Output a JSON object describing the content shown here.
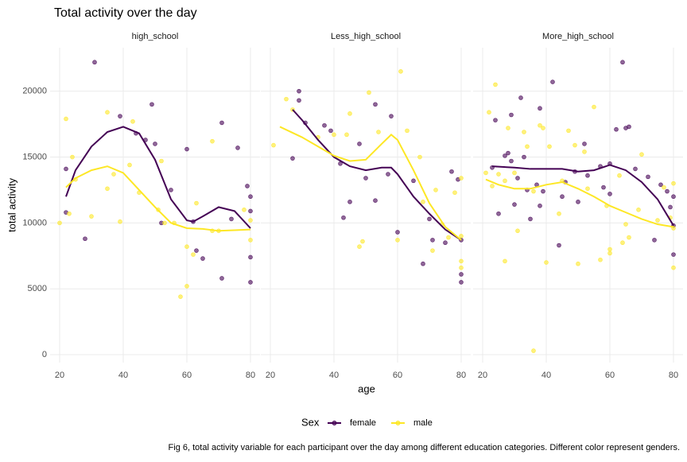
{
  "chart_data": {
    "type": "scatter",
    "title": "Total activity over the day",
    "xlabel": "age",
    "ylabel": "total activity",
    "legend_title": "Sex",
    "caption": "Fig 6, total activity variable for each participant over the day among different education categories. Different color represent genders.",
    "xlim": [
      17,
      83
    ],
    "ylim": [
      -600,
      23300
    ],
    "xticks": [
      20,
      40,
      60,
      80
    ],
    "yticks": [
      0,
      5000,
      10000,
      15000,
      20000
    ],
    "grid": true,
    "groups": [
      {
        "name": "female",
        "color": "#440154"
      },
      {
        "name": "male",
        "color": "#FDE725"
      }
    ],
    "facets": [
      {
        "title": "high_school",
        "series": [
          {
            "x": [
              22,
              22,
              28,
              31,
              39,
              44,
              47,
              49,
              50,
              52,
              55,
              60,
              62,
              63,
              65,
              71,
              71,
              74,
              76,
              79,
              80,
              80,
              80,
              80
            ],
            "values": [
              14100,
              10800,
              8800,
              22200,
              18100,
              16800,
              16300,
              19000,
              16000,
              10000,
              12500,
              15600,
              10100,
              7900,
              7300,
              17600,
              5800,
              10300,
              15700,
              12800,
              12000,
              10900,
              7400,
              5500
            ],
            "smooth_x": [
              22,
              25,
              30,
              35,
              40,
              45,
              50,
              55,
              60,
              62,
              65,
              70,
              75,
              80
            ],
            "smooth_values": [
              12000,
              14000,
              15800,
              16900,
              17300,
              16800,
              14800,
              11800,
              10200,
              10100,
              10500,
              11200,
              10900,
              9600
            ]
          },
          {
            "x": [
              20,
              22,
              23,
              24,
              25,
              30,
              35,
              35,
              37,
              39,
              42,
              43,
              45,
              51,
              52,
              53,
              56,
              58,
              60,
              60,
              62,
              63,
              68,
              68,
              70,
              78,
              80,
              80
            ],
            "values": [
              10000,
              17900,
              10700,
              15000,
              13300,
              10500,
              12600,
              18400,
              13700,
              10100,
              14400,
              17700,
              12300,
              11000,
              14700,
              10000,
              10000,
              4400,
              5200,
              8200,
              7600,
              11500,
              16200,
              9400,
              9400,
              11000,
              10200,
              8700
            ],
            "smooth_x": [
              22,
              25,
              30,
              35,
              40,
              45,
              50,
              55,
              60,
              65,
              70,
              75,
              80
            ],
            "smooth_values": [
              12700,
              13400,
              14000,
              14300,
              13800,
              12500,
              11200,
              10000,
              9600,
              9550,
              9400,
              9450,
              9500
            ]
          }
        ]
      },
      {
        "title": "Less_high_school",
        "series": [
          {
            "x": [
              27,
              29,
              29,
              31,
              37,
              39,
              42,
              43,
              45,
              48,
              50,
              53,
              53,
              58,
              57,
              60,
              65,
              68,
              70,
              71,
              75,
              77,
              79,
              80,
              80,
              80
            ],
            "values": [
              14900,
              20000,
              19300,
              17600,
              17400,
              17000,
              14500,
              10400,
              11600,
              16000,
              13400,
              19000,
              11700,
              18100,
              13700,
              9300,
              13200,
              6900,
              10300,
              8700,
              8500,
              13900,
              13300,
              6100,
              5500,
              8700
            ],
            "smooth_x": [
              27,
              30,
              35,
              40,
              45,
              50,
              55,
              58,
              60,
              65,
              70,
              75,
              80
            ],
            "smooth_values": [
              18600,
              17800,
              16300,
              15000,
              14300,
              14000,
              14200,
              14200,
              13700,
              12000,
              10700,
              9500,
              8700
            ]
          },
          {
            "x": [
              21,
              25,
              27,
              35,
              40,
              44,
              45,
              48,
              49,
              51,
              54,
              61,
              60,
              63,
              67,
              68,
              71,
              72,
              74,
              76,
              78,
              80,
              80,
              80,
              80
            ],
            "values": [
              15900,
              19400,
              18600,
              16500,
              16700,
              16700,
              18300,
              8200,
              8600,
              19900,
              16900,
              21500,
              8700,
              17000,
              15000,
              11600,
              7900,
              12500,
              9900,
              8900,
              12300,
              13400,
              9000,
              7100,
              6600
            ],
            "smooth_x": [
              23,
              30,
              35,
              40,
              45,
              50,
              55,
              58,
              60,
              65,
              70,
              75,
              80
            ],
            "smooth_values": [
              17300,
              16500,
              15800,
              15100,
              14700,
              14800,
              16000,
              16700,
              16300,
              14000,
              11500,
              9700,
              8700
            ]
          }
        ]
      },
      {
        "title": "More_high_school",
        "series": [
          {
            "x": [
              23,
              24,
              25,
              27,
              28,
              29,
              29,
              30,
              31,
              32,
              33,
              34,
              35,
              37,
              38,
              38,
              39,
              42,
              44,
              45,
              46,
              49,
              50,
              52,
              53,
              57,
              58,
              60,
              60,
              62,
              64,
              65,
              66,
              68,
              72,
              74,
              76,
              78,
              79,
              80,
              80,
              80
            ],
            "values": [
              14200,
              17800,
              10700,
              15100,
              15300,
              18200,
              14700,
              11400,
              13400,
              19500,
              15000,
              12500,
              10300,
              12900,
              11300,
              18700,
              12400,
              20700,
              8300,
              12000,
              13100,
              13900,
              11600,
              16000,
              13600,
              14300,
              12700,
              12200,
              14500,
              17100,
              22200,
              17200,
              17300,
              14100,
              13500,
              8700,
              12900,
              12400,
              11200,
              7600,
              12000,
              9800
            ],
            "smooth_x": [
              23,
              30,
              35,
              40,
              45,
              50,
              55,
              60,
              65,
              70,
              75,
              80
            ],
            "smooth_values": [
              14300,
              14200,
              14100,
              14100,
              14100,
              13900,
              14000,
              14400,
              14000,
              13100,
              11800,
              9800
            ]
          },
          {
            "x": [
              21,
              22,
              23,
              24,
              25,
              27,
              27,
              28,
              30,
              31,
              33,
              34,
              36,
              36,
              38,
              39,
              40,
              41,
              44,
              45,
              47,
              49,
              50,
              52,
              53,
              55,
              57,
              59,
              60,
              60,
              63,
              64,
              65,
              66,
              69,
              70,
              75,
              77,
              79,
              80,
              80,
              80
            ],
            "values": [
              13800,
              18400,
              12800,
              20500,
              13700,
              7100,
              13200,
              17200,
              13800,
              9400,
              16900,
              15800,
              300,
              12400,
              17400,
              17200,
              7000,
              15800,
              10700,
              13200,
              17000,
              15900,
              6900,
              15400,
              12600,
              18800,
              7200,
              11300,
              8000,
              7700,
              13600,
              8500,
              9900,
              8900,
              11000,
              15200,
              10200,
              12700,
              10400,
              6600,
              9600,
              13000
            ],
            "smooth_x": [
              21,
              25,
              30,
              35,
              40,
              45,
              50,
              55,
              60,
              65,
              70,
              75,
              80
            ],
            "smooth_values": [
              13300,
              12900,
              12600,
              12600,
              12900,
              13100,
              12600,
              12000,
              11300,
              10800,
              10300,
              9900,
              9700
            ]
          }
        ]
      }
    ]
  }
}
